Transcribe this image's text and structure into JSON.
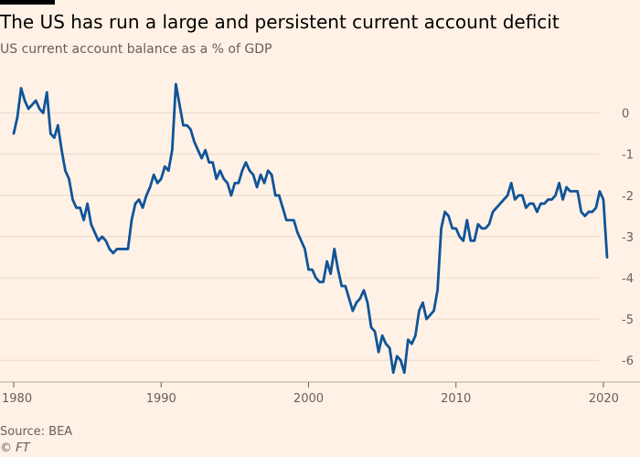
{
  "header": {
    "title": "The US has run a large and persistent current account deficit",
    "subtitle": "US current account balance as a % of GDP"
  },
  "footer": {
    "source": "Source: BEA",
    "credit": "© FT"
  },
  "colors": {
    "background": "#fff1e5",
    "line": "#0f5499",
    "grid": "#e6d9ce",
    "text": "#66605c"
  },
  "chart_data": {
    "type": "line",
    "title": "The US has run a large and persistent current account deficit",
    "subtitle": "US current account balance as a % of GDP",
    "xlabel": "",
    "ylabel": "",
    "xlim": [
      1980,
      2020.5
    ],
    "ylim": [
      -6.35,
      0.7
    ],
    "x_ticks": [
      1980,
      1990,
      2000,
      2010,
      2020
    ],
    "x_tick_labels": [
      "1980",
      "1990",
      "2000",
      "2010",
      "2020"
    ],
    "y_ticks": [
      0,
      -1,
      -2,
      -3,
      -4,
      -5,
      -6
    ],
    "y_tick_labels": [
      "0",
      "-1",
      "-2",
      "-3",
      "-4",
      "-5",
      "-6"
    ],
    "grid": "horizontal",
    "y_axis_side": "right",
    "series": [
      {
        "name": "",
        "color": "#0f5499",
        "points": [
          [
            1980.0,
            -0.5
          ],
          [
            1980.25,
            -0.1
          ],
          [
            1980.5,
            0.6
          ],
          [
            1980.75,
            0.3
          ],
          [
            1981.0,
            0.1
          ],
          [
            1981.25,
            0.2
          ],
          [
            1981.5,
            0.3
          ],
          [
            1981.75,
            0.1
          ],
          [
            1982.0,
            0.0
          ],
          [
            1982.25,
            0.5
          ],
          [
            1982.5,
            -0.5
          ],
          [
            1982.75,
            -0.6
          ],
          [
            1983.0,
            -0.3
          ],
          [
            1983.25,
            -0.9
          ],
          [
            1983.5,
            -1.4
          ],
          [
            1983.75,
            -1.6
          ],
          [
            1984.0,
            -2.1
          ],
          [
            1984.25,
            -2.3
          ],
          [
            1984.5,
            -2.3
          ],
          [
            1984.75,
            -2.6
          ],
          [
            1985.0,
            -2.2
          ],
          [
            1985.25,
            -2.7
          ],
          [
            1985.5,
            -2.9
          ],
          [
            1985.75,
            -3.1
          ],
          [
            1986.0,
            -3.0
          ],
          [
            1986.25,
            -3.1
          ],
          [
            1986.5,
            -3.3
          ],
          [
            1986.75,
            -3.4
          ],
          [
            1987.0,
            -3.3
          ],
          [
            1987.25,
            -3.3
          ],
          [
            1987.5,
            -3.3
          ],
          [
            1987.75,
            -3.3
          ],
          [
            1988.0,
            -2.6
          ],
          [
            1988.25,
            -2.2
          ],
          [
            1988.5,
            -2.1
          ],
          [
            1988.75,
            -2.3
          ],
          [
            1989.0,
            -2.0
          ],
          [
            1989.25,
            -1.8
          ],
          [
            1989.5,
            -1.5
          ],
          [
            1989.75,
            -1.7
          ],
          [
            1990.0,
            -1.6
          ],
          [
            1990.25,
            -1.3
          ],
          [
            1990.5,
            -1.4
          ],
          [
            1990.75,
            -0.9
          ],
          [
            1991.0,
            0.7
          ],
          [
            1991.25,
            0.2
          ],
          [
            1991.5,
            -0.3
          ],
          [
            1991.75,
            -0.3
          ],
          [
            1992.0,
            -0.4
          ],
          [
            1992.25,
            -0.7
          ],
          [
            1992.5,
            -0.9
          ],
          [
            1992.75,
            -1.1
          ],
          [
            1993.0,
            -0.9
          ],
          [
            1993.25,
            -1.2
          ],
          [
            1993.5,
            -1.2
          ],
          [
            1993.75,
            -1.6
          ],
          [
            1994.0,
            -1.4
          ],
          [
            1994.25,
            -1.6
          ],
          [
            1994.5,
            -1.7
          ],
          [
            1994.75,
            -2.0
          ],
          [
            1995.0,
            -1.7
          ],
          [
            1995.25,
            -1.7
          ],
          [
            1995.5,
            -1.4
          ],
          [
            1995.75,
            -1.2
          ],
          [
            1996.0,
            -1.4
          ],
          [
            1996.25,
            -1.5
          ],
          [
            1996.5,
            -1.8
          ],
          [
            1996.75,
            -1.5
          ],
          [
            1997.0,
            -1.7
          ],
          [
            1997.25,
            -1.4
          ],
          [
            1997.5,
            -1.5
          ],
          [
            1997.75,
            -2.0
          ],
          [
            1998.0,
            -2.0
          ],
          [
            1998.25,
            -2.3
          ],
          [
            1998.5,
            -2.6
          ],
          [
            1998.75,
            -2.6
          ],
          [
            1999.0,
            -2.6
          ],
          [
            1999.25,
            -2.9
          ],
          [
            1999.5,
            -3.1
          ],
          [
            1999.75,
            -3.3
          ],
          [
            2000.0,
            -3.8
          ],
          [
            2000.25,
            -3.8
          ],
          [
            2000.5,
            -4.0
          ],
          [
            2000.75,
            -4.1
          ],
          [
            2001.0,
            -4.1
          ],
          [
            2001.25,
            -3.6
          ],
          [
            2001.5,
            -3.9
          ],
          [
            2001.75,
            -3.3
          ],
          [
            2002.0,
            -3.8
          ],
          [
            2002.25,
            -4.2
          ],
          [
            2002.5,
            -4.2
          ],
          [
            2002.75,
            -4.5
          ],
          [
            2003.0,
            -4.8
          ],
          [
            2003.25,
            -4.6
          ],
          [
            2003.5,
            -4.5
          ],
          [
            2003.75,
            -4.3
          ],
          [
            2004.0,
            -4.6
          ],
          [
            2004.25,
            -5.2
          ],
          [
            2004.5,
            -5.3
          ],
          [
            2004.75,
            -5.8
          ],
          [
            2005.0,
            -5.4
          ],
          [
            2005.25,
            -5.6
          ],
          [
            2005.5,
            -5.7
          ],
          [
            2005.75,
            -6.3
          ],
          [
            2006.0,
            -5.9
          ],
          [
            2006.25,
            -6.0
          ],
          [
            2006.5,
            -6.3
          ],
          [
            2006.75,
            -5.5
          ],
          [
            2007.0,
            -5.6
          ],
          [
            2007.25,
            -5.4
          ],
          [
            2007.5,
            -4.8
          ],
          [
            2007.75,
            -4.6
          ],
          [
            2008.0,
            -5.0
          ],
          [
            2008.25,
            -4.9
          ],
          [
            2008.5,
            -4.8
          ],
          [
            2008.75,
            -4.3
          ],
          [
            2009.0,
            -2.8
          ],
          [
            2009.25,
            -2.4
          ],
          [
            2009.5,
            -2.5
          ],
          [
            2009.75,
            -2.8
          ],
          [
            2010.0,
            -2.8
          ],
          [
            2010.25,
            -3.0
          ],
          [
            2010.5,
            -3.1
          ],
          [
            2010.75,
            -2.6
          ],
          [
            2011.0,
            -3.1
          ],
          [
            2011.25,
            -3.1
          ],
          [
            2011.5,
            -2.7
          ],
          [
            2011.75,
            -2.8
          ],
          [
            2012.0,
            -2.8
          ],
          [
            2012.25,
            -2.7
          ],
          [
            2012.5,
            -2.4
          ],
          [
            2012.75,
            -2.3
          ],
          [
            2013.0,
            -2.2
          ],
          [
            2013.25,
            -2.1
          ],
          [
            2013.5,
            -2.0
          ],
          [
            2013.75,
            -1.7
          ],
          [
            2014.0,
            -2.1
          ],
          [
            2014.25,
            -2.0
          ],
          [
            2014.5,
            -2.0
          ],
          [
            2014.75,
            -2.3
          ],
          [
            2015.0,
            -2.2
          ],
          [
            2015.25,
            -2.2
          ],
          [
            2015.5,
            -2.4
          ],
          [
            2015.75,
            -2.2
          ],
          [
            2016.0,
            -2.2
          ],
          [
            2016.25,
            -2.1
          ],
          [
            2016.5,
            -2.1
          ],
          [
            2016.75,
            -2.0
          ],
          [
            2017.0,
            -1.7
          ],
          [
            2017.25,
            -2.1
          ],
          [
            2017.5,
            -1.8
          ],
          [
            2017.75,
            -1.9
          ],
          [
            2018.0,
            -1.9
          ],
          [
            2018.25,
            -1.9
          ],
          [
            2018.5,
            -2.4
          ],
          [
            2018.75,
            -2.5
          ],
          [
            2019.0,
            -2.4
          ],
          [
            2019.25,
            -2.4
          ],
          [
            2019.5,
            -2.3
          ],
          [
            2019.75,
            -1.9
          ],
          [
            2020.0,
            -2.1
          ],
          [
            2020.25,
            -3.5
          ]
        ]
      }
    ]
  }
}
